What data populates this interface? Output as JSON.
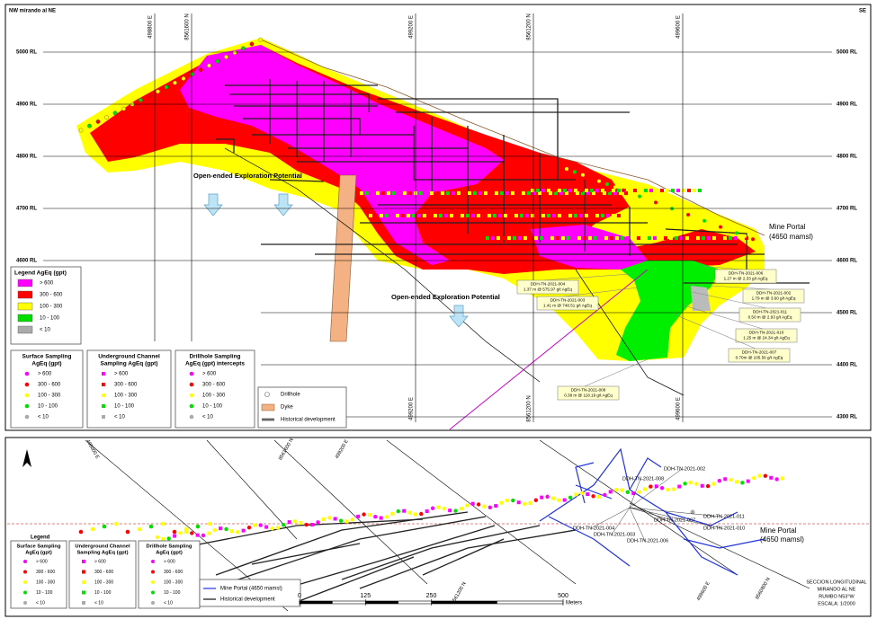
{
  "section": {
    "title_left": "NW mirando al NE",
    "title_right": "SE",
    "elevation_labels": [
      "5000 RL",
      "4900 RL",
      "4800 RL",
      "4700 RL",
      "4600 RL",
      "4500 RL",
      "4400 RL",
      "4300 RL"
    ],
    "grid_labels_top": [
      "498800 E",
      "8561600 N",
      "499200 E",
      "8561200 N",
      "499600 E"
    ],
    "grid_labels_bottom": [
      "499200 E",
      "8561200 N",
      "499600 E"
    ],
    "annotations": [
      "Open-ended Exploration Potential",
      "Open-ended Exploration Potential"
    ],
    "mine_portal": [
      "Mine Portal",
      "(4650 mamsl)"
    ],
    "intercepts": [
      {
        "hole": "DDH-TN-2021-006",
        "result": "1.27 m @ 2.33 g/t AgEq"
      },
      {
        "hole": "DDH-TN-2021-004",
        "result": "1.37 m @ 575.97 g/t AgEq"
      },
      {
        "hole": "DDH-TN-2021-002",
        "result": "1.79 m @ 3.60 g/t AgEq"
      },
      {
        "hole": "DDH-TN-2021-003",
        "result": "1.41 m @ 748.51 g/t AgEq"
      },
      {
        "hole": "DDH-TN-2021-011",
        "result": "0.50 m @ 2.93 g/t AgEq"
      },
      {
        "hole": "DDH-TN-2021-010",
        "result": "1.25 m @ 24.34 g/t AgEq"
      },
      {
        "hole": "DDH-TN-2021-007",
        "result": "0.70m @ 105.56 g/t AgEq"
      },
      {
        "hole": "DDH-TN-2021-008",
        "result": "0.38 m @ 118.19 g/t AgEq"
      }
    ]
  },
  "legends": {
    "grade": {
      "title": [
        "Legend AgEq (gpt)"
      ],
      "classes": [
        "> 600",
        "300 - 600",
        "100 - 300",
        "10 - 100",
        "< 10"
      ]
    },
    "surface": {
      "title": [
        "Surface Sampling",
        "AgEq (gpt)"
      ],
      "classes": [
        "> 600",
        "300 - 600",
        "100 - 300",
        "10 - 100",
        "< 10"
      ]
    },
    "channel": {
      "title": [
        "Underground Channel",
        "Sampling AgEq (gpt)"
      ],
      "classes": [
        "> 600",
        "300 - 600",
        "100 - 300",
        "10 - 100",
        "< 10"
      ]
    },
    "drillhole": {
      "title": [
        "Drillhole Sampling",
        "AgEq (gpt) intercepts"
      ],
      "classes": [
        "> 600",
        "300 - 600",
        "100 - 300",
        "10 - 100",
        "< 10"
      ]
    },
    "features": [
      "Drillhole",
      "Dyke",
      "Historical development"
    ]
  },
  "plan": {
    "grid_labels": [
      "498800 E",
      "8561600 N",
      "499200 E",
      "8561200 N",
      "499600 E",
      "8560800 N"
    ],
    "drillholes": [
      "DDH-TN-2021-002",
      "DDH-TN-2021-008",
      "DDH-TN-2021-011",
      "DDH-TN-2021-007",
      "DDH-TN-2021-010",
      "DDH-TN-2021-004",
      "DDH-TN-2021-003",
      "DDH-TN-2021-006"
    ],
    "mine_portal": [
      "Mine Portal",
      "(4650 mamsl)"
    ],
    "legend_title": "Legend",
    "legends": {
      "surface": {
        "title": [
          "Surface Sampling",
          "AgEq (gpt)"
        ],
        "classes": [
          "> 600",
          "300 - 600",
          "100 - 300",
          "10 - 100",
          "< 10"
        ]
      },
      "channel": {
        "title": [
          "Underground Channel",
          "Sampling AgEq (gpt)"
        ],
        "classes": [
          "> 600",
          "300 - 600",
          "100 - 300",
          "10 - 100",
          "< 10"
        ]
      },
      "drillhole": {
        "title": [
          "Drillhole Sampling",
          "AgEq (gpt)"
        ],
        "classes": [
          "> 600",
          "300 - 600",
          "100 - 300",
          "10 - 100",
          "< 10"
        ]
      }
    },
    "line_legend": [
      "Mine Portal (4650 mamsl)",
      "Historical development"
    ],
    "scale": {
      "ticks": [
        0,
        125,
        250,
        500
      ],
      "unit": "Meters"
    },
    "info": [
      "SECCION LONGITUDINAL",
      "MIRANDO AL NE",
      "RUMBO N53°W",
      "ESCALA: 1/2000"
    ]
  }
}
